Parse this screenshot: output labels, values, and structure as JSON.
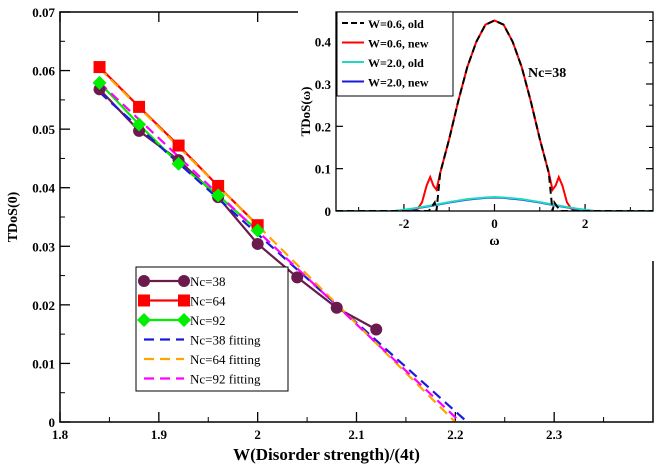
{
  "chart_data": [
    {
      "type": "line",
      "xlabel": "W(Disorder strength)/(4t)",
      "ylabel": "TDoS(0)",
      "xlim": [
        1.8,
        2.4
      ],
      "ylim": [
        0,
        0.07
      ],
      "xticks": [
        "1.8",
        "1.9",
        "2",
        "2.1",
        "2.2",
        "2.3"
      ],
      "xtick_values": [
        1.8,
        1.9,
        2.0,
        2.1,
        2.2,
        2.3
      ],
      "yticks": [
        "0",
        "0.01",
        "0.02",
        "0.03",
        "0.04",
        "0.05",
        "0.06",
        "0.07"
      ],
      "ytick_values": [
        0,
        0.01,
        0.02,
        0.03,
        0.04,
        0.05,
        0.06,
        0.07
      ],
      "grid": false,
      "legend_position": "bottom-left",
      "series": [
        {
          "name": "Nc=38",
          "color": "#6b1a4e",
          "marker": "circle",
          "style": "solid",
          "x": [
            1.84,
            1.88,
            1.92,
            1.96,
            2.0,
            2.04,
            2.08,
            2.12
          ],
          "y": [
            0.0568,
            0.0497,
            0.0447,
            0.0384,
            0.0304,
            0.0247,
            0.0195,
            0.0158
          ]
        },
        {
          "name": "Nc=64",
          "color": "#ff0000",
          "marker": "square",
          "style": "solid",
          "x": [
            1.84,
            1.88,
            1.92,
            1.96,
            2.0
          ],
          "y": [
            0.0606,
            0.0538,
            0.0472,
            0.0403,
            0.0336
          ]
        },
        {
          "name": "Nc=92",
          "color": "#00ee00",
          "marker": "diamond",
          "style": "solid",
          "x": [
            1.84,
            1.88,
            1.92,
            1.96,
            2.0
          ],
          "y": [
            0.0579,
            0.0508,
            0.0441,
            0.0387,
            0.0327
          ]
        },
        {
          "name": "Nc=38 fitting",
          "color": "#1a1adc",
          "marker": "none",
          "style": "dashed",
          "x": [
            1.84,
            2.212
          ],
          "y": [
            0.0563,
            0
          ]
        },
        {
          "name": "Nc=64 fitting",
          "color": "#ffa500",
          "marker": "none",
          "style": "dashed",
          "x": [
            1.84,
            2.2
          ],
          "y": [
            0.0604,
            0
          ]
        },
        {
          "name": "Nc=92 fitting",
          "color": "#ff00ff",
          "marker": "none",
          "style": "dashed",
          "x": [
            1.84,
            2.205
          ],
          "y": [
            0.058,
            0
          ]
        }
      ]
    },
    {
      "type": "line",
      "annotation": "Nc=38",
      "xlabel": "ω",
      "ylabel": "TDoS(ω)",
      "xlim": [
        -3.5,
        3.5
      ],
      "ylim": [
        0,
        0.47
      ],
      "xticks": [
        "-2",
        "0",
        "2"
      ],
      "xtick_values": [
        -2,
        0,
        2
      ],
      "yticks": [
        "0",
        "0.1",
        "0.2",
        "0.3",
        "0.4"
      ],
      "ytick_values": [
        0,
        0.1,
        0.2,
        0.3,
        0.4
      ],
      "legend_position": "top-left",
      "series": [
        {
          "name": "W=0.6, old",
          "color": "#000000",
          "style": "dashed",
          "x": [
            -3.5,
            -1.45,
            -1.32,
            -1.28,
            -1.2,
            -1.0,
            -0.8,
            -0.6,
            -0.4,
            -0.2,
            0,
            0.2,
            0.4,
            0.6,
            0.8,
            1.0,
            1.2,
            1.28,
            1.32,
            1.45,
            3.5
          ],
          "y": [
            0,
            0,
            0.02,
            0.0,
            0.09,
            0.17,
            0.26,
            0.34,
            0.4,
            0.44,
            0.45,
            0.44,
            0.4,
            0.34,
            0.26,
            0.17,
            0.09,
            0.0,
            0.02,
            0,
            0
          ]
        },
        {
          "name": "W=0.6, new",
          "color": "#ff0000",
          "style": "solid",
          "x": [
            -3.5,
            -1.9,
            -1.7,
            -1.6,
            -1.5,
            -1.42,
            -1.35,
            -1.28,
            -1.2,
            -1.0,
            -0.8,
            -0.6,
            -0.4,
            -0.2,
            0,
            0.2,
            0.4,
            0.6,
            0.8,
            1.0,
            1.2,
            1.28,
            1.35,
            1.42,
            1.5,
            1.6,
            1.7,
            1.9,
            3.5
          ],
          "y": [
            0,
            0,
            0.005,
            0.02,
            0.06,
            0.08,
            0.06,
            0.05,
            0.09,
            0.17,
            0.26,
            0.34,
            0.4,
            0.44,
            0.45,
            0.44,
            0.4,
            0.34,
            0.26,
            0.17,
            0.09,
            0.05,
            0.06,
            0.08,
            0.06,
            0.02,
            0.005,
            0,
            0
          ]
        },
        {
          "name": "W=2.0, old",
          "color": "#20d8c0",
          "style": "solid",
          "x": [
            -3.5,
            -2.2,
            -1.8,
            -1.4,
            -1.0,
            -0.6,
            -0.2,
            0,
            0.2,
            0.6,
            1.0,
            1.4,
            1.8,
            2.2,
            3.5
          ],
          "y": [
            0,
            0.0,
            0.006,
            0.013,
            0.021,
            0.028,
            0.032,
            0.033,
            0.032,
            0.028,
            0.021,
            0.013,
            0.006,
            0.0,
            0
          ]
        },
        {
          "name": "W=2.0, new",
          "color": "#1a1adc",
          "style": "solid",
          "x": [
            -3.5,
            -2.2,
            -1.8,
            -1.4,
            -1.0,
            -0.6,
            -0.2,
            0,
            0.2,
            0.6,
            1.0,
            1.4,
            1.8,
            2.2,
            3.5
          ],
          "y": [
            0,
            0.0,
            0.005,
            0.012,
            0.02,
            0.027,
            0.031,
            0.032,
            0.031,
            0.027,
            0.02,
            0.012,
            0.005,
            0.0,
            0
          ]
        }
      ]
    }
  ]
}
